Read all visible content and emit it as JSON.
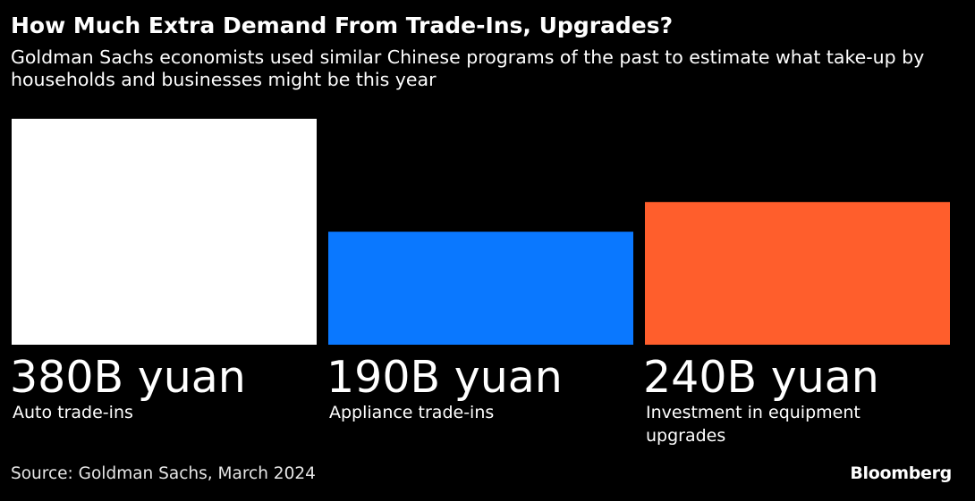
{
  "title": "How Much Extra Demand From Trade-Ins, Upgrades?",
  "subtitle": "Goldman Sachs economists used similar Chinese programs of the past to estimate what take-up by households and businesses might be this year",
  "source": "Source: Goldman Sachs, March 2024",
  "brand": "Bloomberg",
  "chart_data": {
    "type": "bar",
    "title": "How Much Extra Demand From Trade-Ins, Upgrades?",
    "unit": "B yuan",
    "categories": [
      "Auto trade-ins",
      "Appliance trade-ins",
      "Investment in equipment upgrades"
    ],
    "values": [
      380,
      190,
      240
    ],
    "value_labels": [
      "380B yuan",
      "190B yuan",
      "240B yuan"
    ],
    "colors": [
      "#ffffff",
      "#0a78ff",
      "#ff5e2c"
    ],
    "ylim": [
      0,
      380
    ],
    "grid": false,
    "legend": "none"
  }
}
